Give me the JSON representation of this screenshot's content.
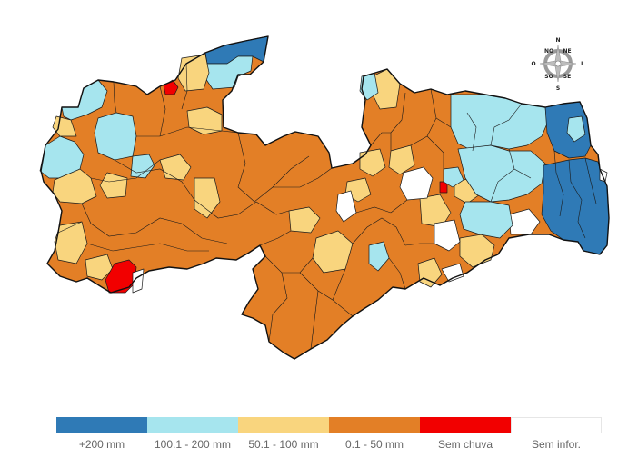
{
  "compass": {
    "n": "N",
    "s": "S",
    "l": "L",
    "o": "O",
    "ne": "NE",
    "no": "NO",
    "se": "SE",
    "so": "SO"
  },
  "legend": [
    {
      "label": "+200 mm",
      "color": "#2f7ab6"
    },
    {
      "label": "100.1 - 200 mm",
      "color": "#a6e5ee"
    },
    {
      "label": "50.1 - 100 mm",
      "color": "#f9d57e"
    },
    {
      "label": "0.1 - 50 mm",
      "color": "#e37f26"
    },
    {
      "label": "Sem chuva",
      "color": "#f20000"
    },
    {
      "label": "Sem infor.",
      "color": "#ffffff"
    }
  ],
  "map": {
    "regions": [
      {
        "category": "0.1 - 50 mm",
        "color": "#e37f26"
      },
      {
        "category": "100.1 - 200 mm",
        "color": "#a6e5ee"
      },
      {
        "category": "+200 mm",
        "color": "#2f7ab6"
      },
      {
        "category": "50.1 - 100 mm",
        "color": "#f9d57e"
      },
      {
        "category": "Sem chuva",
        "color": "#f20000"
      },
      {
        "category": "Sem infor.",
        "color": "#ffffff"
      }
    ]
  }
}
